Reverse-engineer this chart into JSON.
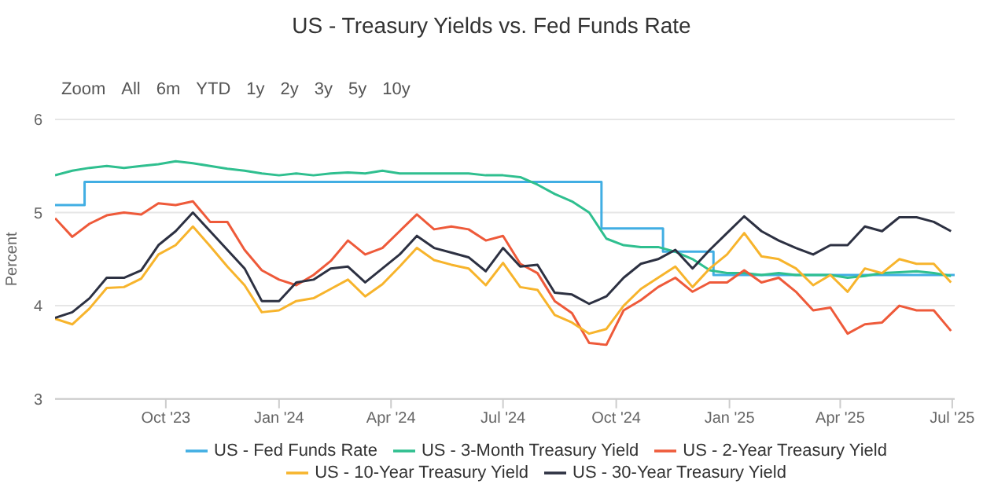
{
  "chart_data": {
    "type": "line",
    "title": "US - Treasury Yields vs. Fed Funds Rate",
    "ylabel": "Percent",
    "annotations": [
      "Zoom",
      "All",
      "6m",
      "YTD",
      "1y",
      "2y",
      "3y",
      "5y",
      "10y"
    ],
    "x": [
      "2023-07-03",
      "2023-07-17",
      "2023-07-31",
      "2023-08-14",
      "2023-08-28",
      "2023-09-11",
      "2023-09-25",
      "2023-10-09",
      "2023-10-23",
      "2023-11-06",
      "2023-11-20",
      "2023-12-04",
      "2023-12-18",
      "2024-01-01",
      "2024-01-15",
      "2024-01-29",
      "2024-02-12",
      "2024-02-26",
      "2024-03-11",
      "2024-03-25",
      "2024-04-08",
      "2024-04-22",
      "2024-05-06",
      "2024-05-20",
      "2024-06-03",
      "2024-06-17",
      "2024-07-01",
      "2024-07-15",
      "2024-07-29",
      "2024-08-12",
      "2024-08-26",
      "2024-09-09",
      "2024-09-23",
      "2024-10-07",
      "2024-10-21",
      "2024-11-04",
      "2024-11-18",
      "2024-12-02",
      "2024-12-16",
      "2024-12-30",
      "2025-01-13",
      "2025-01-27",
      "2025-02-10",
      "2025-02-24",
      "2025-03-10",
      "2025-03-24",
      "2025-04-07",
      "2025-04-21",
      "2025-05-05",
      "2025-05-19",
      "2025-06-02",
      "2025-06-16",
      "2025-06-30"
    ],
    "xlim": [
      "2023-07-03",
      "2025-07-03"
    ],
    "xticks": [
      {
        "value": "2023-10-01",
        "label": "Oct '23"
      },
      {
        "value": "2024-01-01",
        "label": "Jan '24"
      },
      {
        "value": "2024-04-01",
        "label": "Apr '24"
      },
      {
        "value": "2024-07-01",
        "label": "Jul '24"
      },
      {
        "value": "2024-10-01",
        "label": "Oct '24"
      },
      {
        "value": "2025-01-01",
        "label": "Jan '25"
      },
      {
        "value": "2025-04-01",
        "label": "Apr '25"
      },
      {
        "value": "2025-07-01",
        "label": "Jul '25"
      }
    ],
    "ylim": [
      3,
      6
    ],
    "yticks": [
      3,
      4,
      5,
      6
    ],
    "grid": "y",
    "legend": "bottom",
    "marker": "none",
    "series": [
      {
        "name": "US - Fed Funds Rate",
        "type": "step",
        "color": "#41aee3",
        "x": [
          "2023-07-03",
          "2023-07-27",
          "2024-09-19",
          "2024-11-08",
          "2024-12-19",
          "2025-07-03"
        ],
        "values": [
          5.08,
          5.33,
          4.83,
          4.58,
          4.33,
          4.33
        ]
      },
      {
        "name": "US - 3-Month Treasury Yield",
        "color": "#2fbf8f",
        "values": [
          5.4,
          5.45,
          5.48,
          5.5,
          5.48,
          5.5,
          5.52,
          5.55,
          5.53,
          5.5,
          5.47,
          5.45,
          5.42,
          5.4,
          5.42,
          5.4,
          5.42,
          5.43,
          5.42,
          5.45,
          5.42,
          5.42,
          5.42,
          5.42,
          5.42,
          5.4,
          5.4,
          5.38,
          5.3,
          5.2,
          5.12,
          5.0,
          4.72,
          4.65,
          4.63,
          4.63,
          4.58,
          4.5,
          4.38,
          4.35,
          4.35,
          4.33,
          4.35,
          4.33,
          4.33,
          4.33,
          4.3,
          4.32,
          4.35,
          4.36,
          4.37,
          4.35,
          4.32
        ]
      },
      {
        "name": "US - 2-Year Treasury Yield",
        "color": "#ee5a3a",
        "values": [
          4.94,
          4.74,
          4.88,
          4.97,
          5.0,
          4.98,
          5.1,
          5.08,
          5.12,
          4.9,
          4.9,
          4.6,
          4.38,
          4.28,
          4.22,
          4.33,
          4.48,
          4.7,
          4.55,
          4.62,
          4.8,
          4.98,
          4.82,
          4.85,
          4.82,
          4.7,
          4.75,
          4.45,
          4.35,
          4.05,
          3.92,
          3.6,
          3.58,
          3.95,
          4.06,
          4.2,
          4.3,
          4.15,
          4.25,
          4.25,
          4.38,
          4.25,
          4.3,
          4.15,
          3.95,
          3.98,
          3.7,
          3.8,
          3.82,
          4.0,
          3.95,
          3.95,
          3.73
        ]
      },
      {
        "name": "US - 10-Year Treasury Yield",
        "color": "#f7b42c",
        "values": [
          3.86,
          3.8,
          3.97,
          4.19,
          4.2,
          4.29,
          4.55,
          4.65,
          4.85,
          4.64,
          4.42,
          4.22,
          3.93,
          3.95,
          4.05,
          4.08,
          4.18,
          4.28,
          4.1,
          4.23,
          4.42,
          4.62,
          4.49,
          4.44,
          4.4,
          4.22,
          4.46,
          4.2,
          4.17,
          3.9,
          3.82,
          3.7,
          3.75,
          4.0,
          4.18,
          4.3,
          4.42,
          4.2,
          4.4,
          4.55,
          4.78,
          4.53,
          4.5,
          4.4,
          4.22,
          4.33,
          4.15,
          4.4,
          4.35,
          4.5,
          4.45,
          4.45,
          4.25
        ]
      },
      {
        "name": "US - 30-Year Treasury Yield",
        "color": "#2d3142",
        "values": [
          3.87,
          3.93,
          4.08,
          4.3,
          4.3,
          4.38,
          4.65,
          4.8,
          5.0,
          4.8,
          4.6,
          4.4,
          4.05,
          4.05,
          4.25,
          4.28,
          4.4,
          4.42,
          4.25,
          4.4,
          4.55,
          4.75,
          4.62,
          4.57,
          4.52,
          4.37,
          4.62,
          4.42,
          4.44,
          4.14,
          4.12,
          4.02,
          4.1,
          4.3,
          4.45,
          4.5,
          4.6,
          4.4,
          4.6,
          4.78,
          4.96,
          4.8,
          4.7,
          4.62,
          4.55,
          4.65,
          4.65,
          4.85,
          4.8,
          4.95,
          4.95,
          4.9,
          4.8
        ]
      }
    ]
  }
}
